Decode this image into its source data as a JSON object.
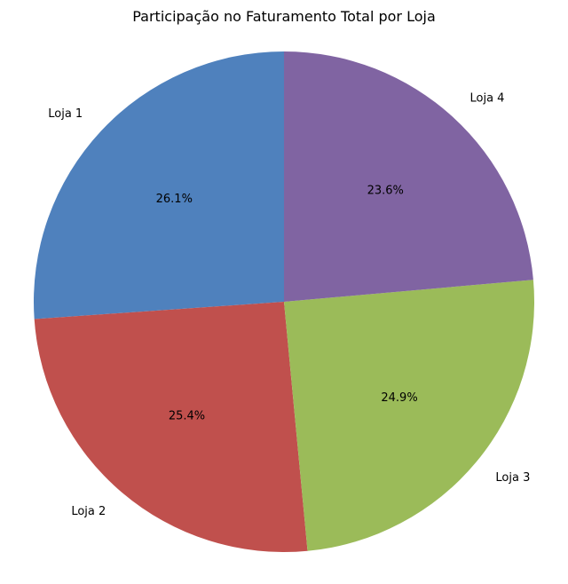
{
  "chart_data": {
    "type": "pie",
    "title": "Participação no Faturamento Total por Loja",
    "categories": [
      "Loja 1",
      "Loja 2",
      "Loja 3",
      "Loja 4"
    ],
    "values": [
      26.1,
      25.4,
      24.9,
      23.6
    ],
    "value_labels": [
      "26.1%",
      "25.4%",
      "24.9%",
      "23.6%"
    ],
    "colors": [
      "#4f81bd",
      "#c0504d",
      "#9bbb59",
      "#8064a2"
    ],
    "start_angle_deg": 90,
    "direction": "counterclockwise",
    "legend": "none"
  }
}
